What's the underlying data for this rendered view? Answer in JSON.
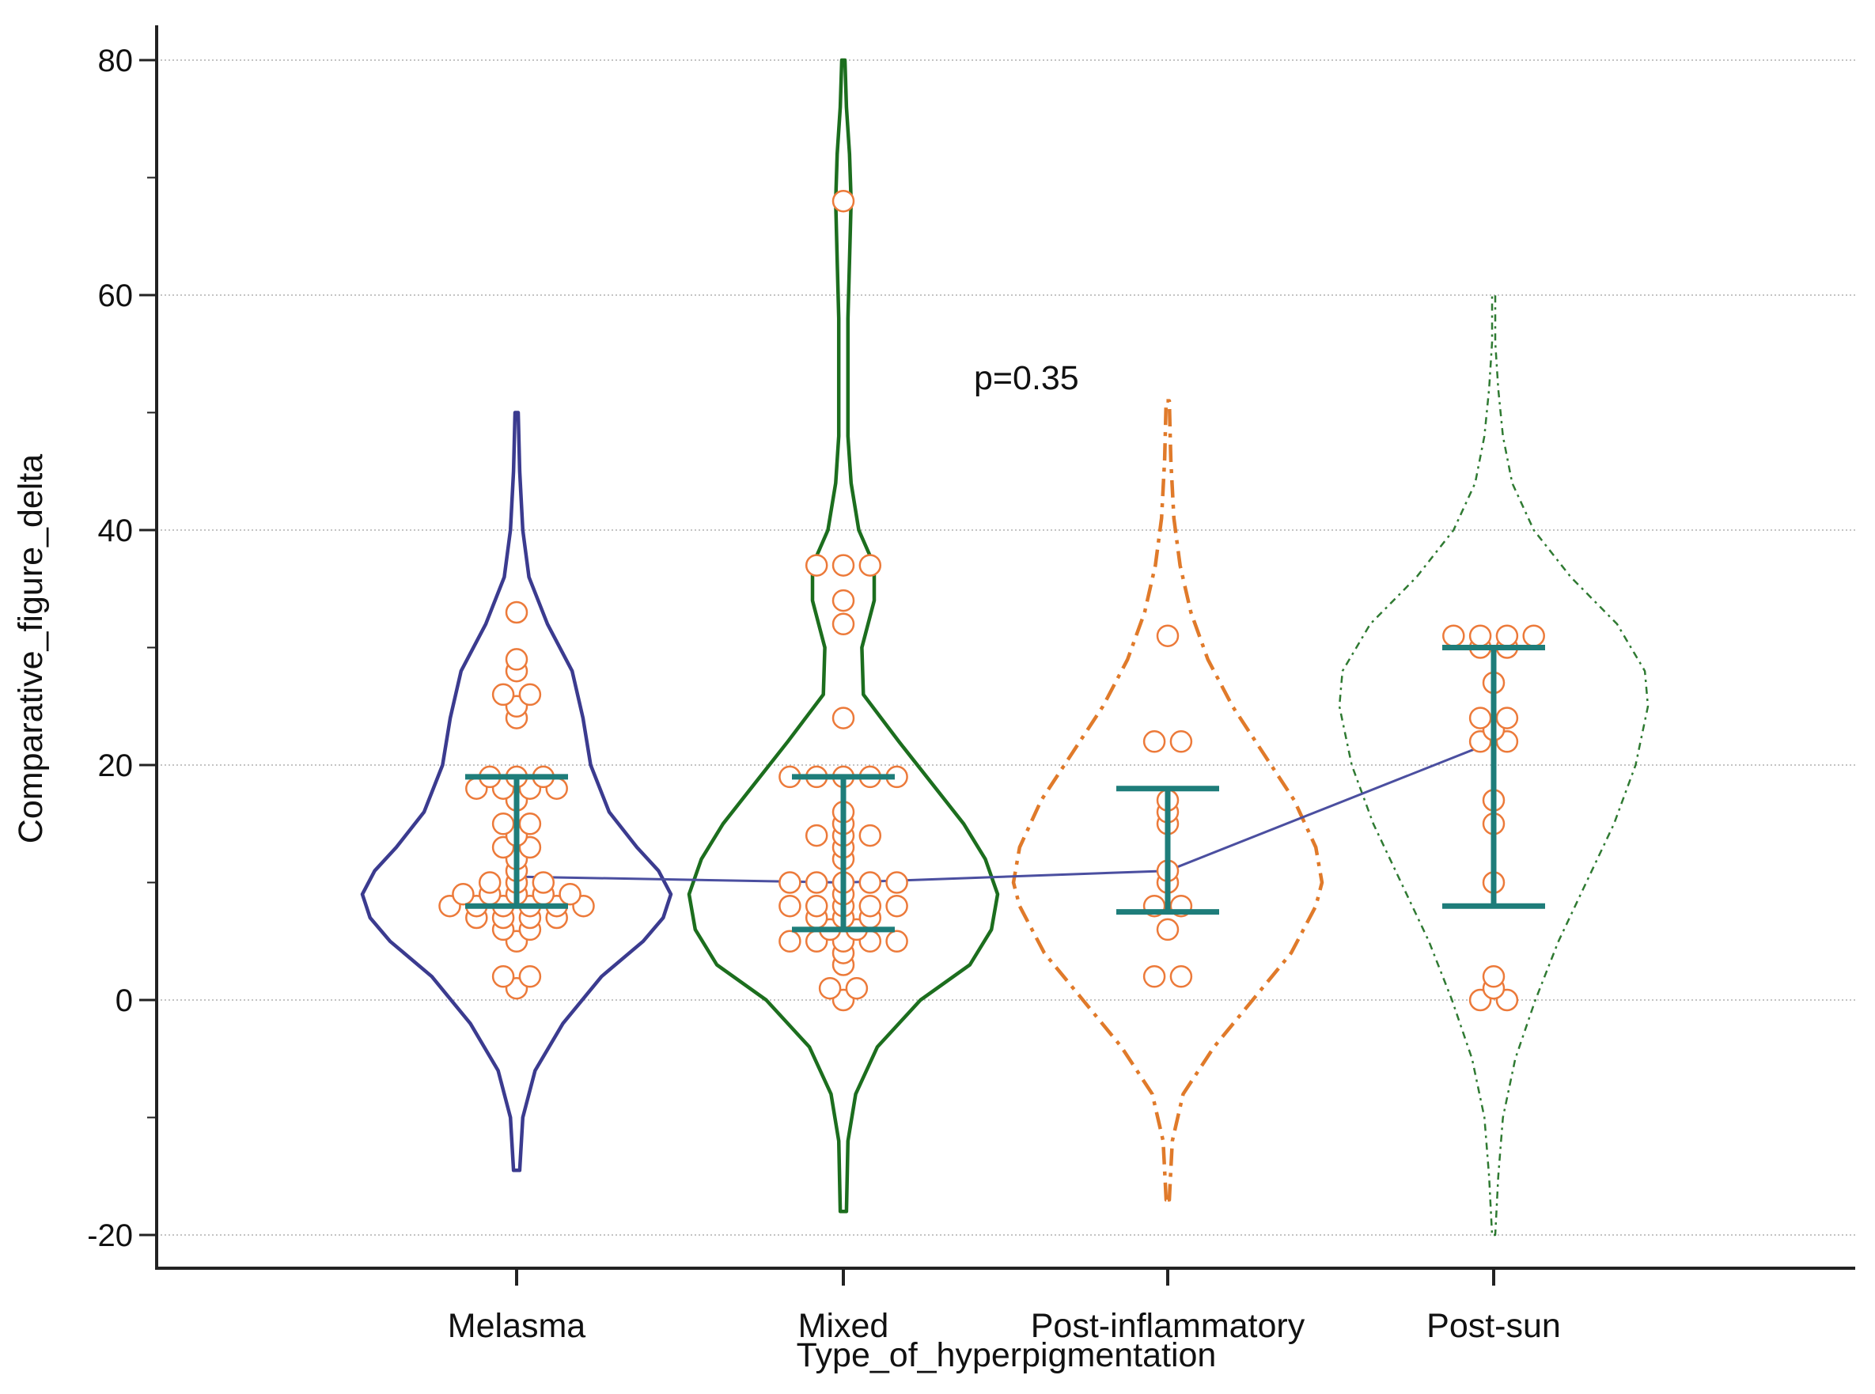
{
  "chart_data": {
    "type": "violin",
    "xlabel": "Type_of_hyperpigmentation",
    "ylabel": "Comparative_figure_delta",
    "ylim": [
      -22,
      84
    ],
    "yticks": [
      -20,
      0,
      20,
      40,
      60,
      80
    ],
    "ytick_labels": [
      "-20",
      "0",
      "20",
      "40",
      "60",
      "80"
    ],
    "grid": "horizontal-dotted",
    "annotation": {
      "text": "p=0.35",
      "x_category": 1.4,
      "y": 52
    },
    "colors": {
      "point": "#ec7a3a",
      "errorbar": "#1e7d7a",
      "trend_line": "#4b4fa0",
      "axis": "#222222",
      "grid": "#b0b0b0"
    },
    "trend_line": {
      "values": [
        10.5,
        10,
        11,
        22
      ]
    },
    "groups": [
      {
        "category": "Melasma",
        "color": "#3b3b8f",
        "line_style": "solid",
        "range": [
          -14.5,
          50
        ],
        "density": [
          [
            -14.5,
            0.02
          ],
          [
            -10,
            0.04
          ],
          [
            -6,
            0.12
          ],
          [
            -2,
            0.3
          ],
          [
            2,
            0.55
          ],
          [
            5,
            0.82
          ],
          [
            7,
            0.95
          ],
          [
            9,
            1.0
          ],
          [
            11,
            0.92
          ],
          [
            13,
            0.78
          ],
          [
            16,
            0.6
          ],
          [
            20,
            0.48
          ],
          [
            24,
            0.43
          ],
          [
            28,
            0.36
          ],
          [
            32,
            0.2
          ],
          [
            36,
            0.08
          ],
          [
            40,
            0.04
          ],
          [
            45,
            0.02
          ],
          [
            50,
            0.01
          ]
        ],
        "points": [
          33,
          29,
          28,
          26,
          26,
          25,
          24,
          19,
          19,
          19,
          18,
          18,
          18,
          18,
          17,
          15,
          15,
          14,
          13,
          13,
          12,
          11,
          10,
          10,
          10,
          9,
          9,
          9,
          9,
          9,
          8,
          8,
          8,
          8,
          8,
          8,
          7,
          7,
          7,
          7,
          6,
          6,
          5,
          2,
          2,
          1
        ],
        "error_bar": {
          "low": 8,
          "high": 19
        },
        "trend_value": 10.5
      },
      {
        "category": "Mixed",
        "color": "#1c6e1e",
        "line_style": "solid",
        "range": [
          -18,
          80
        ],
        "density": [
          [
            -18,
            0.02
          ],
          [
            -12,
            0.03
          ],
          [
            -8,
            0.08
          ],
          [
            -4,
            0.22
          ],
          [
            0,
            0.5
          ],
          [
            3,
            0.82
          ],
          [
            6,
            0.96
          ],
          [
            9,
            1.0
          ],
          [
            12,
            0.92
          ],
          [
            15,
            0.78
          ],
          [
            18,
            0.6
          ],
          [
            22,
            0.36
          ],
          [
            26,
            0.13
          ],
          [
            30,
            0.12
          ],
          [
            34,
            0.2
          ],
          [
            37,
            0.2
          ],
          [
            40,
            0.1
          ],
          [
            44,
            0.05
          ],
          [
            48,
            0.03
          ],
          [
            53,
            0.03
          ],
          [
            58,
            0.03
          ],
          [
            63,
            0.04
          ],
          [
            68,
            0.05
          ],
          [
            72,
            0.04
          ],
          [
            76,
            0.02
          ],
          [
            80,
            0.01
          ]
        ],
        "points": [
          68,
          37,
          37,
          37,
          34,
          32,
          24,
          19,
          19,
          19,
          19,
          19,
          16,
          15,
          14,
          14,
          14,
          13,
          12,
          10,
          10,
          10,
          10,
          10,
          9,
          8,
          8,
          8,
          8,
          8,
          7,
          7,
          7,
          6,
          6,
          5,
          5,
          5,
          5,
          5,
          4,
          3,
          1,
          1,
          0
        ],
        "error_bar": {
          "low": 6,
          "high": 19
        },
        "trend_value": 10
      },
      {
        "category": "Post-inflammatory",
        "color": "#e07a2a",
        "line_style": "dashdot",
        "range": [
          -17,
          51
        ],
        "density": [
          [
            -17,
            0.01
          ],
          [
            -12,
            0.03
          ],
          [
            -8,
            0.1
          ],
          [
            -4,
            0.3
          ],
          [
            0,
            0.55
          ],
          [
            4,
            0.8
          ],
          [
            8,
            0.96
          ],
          [
            10,
            1.0
          ],
          [
            13,
            0.96
          ],
          [
            17,
            0.82
          ],
          [
            21,
            0.62
          ],
          [
            25,
            0.42
          ],
          [
            29,
            0.26
          ],
          [
            33,
            0.15
          ],
          [
            37,
            0.08
          ],
          [
            41,
            0.04
          ],
          [
            46,
            0.02
          ],
          [
            51,
            0.01
          ]
        ],
        "points": [
          31,
          22,
          22,
          17,
          16,
          15,
          11,
          10,
          8,
          8,
          6,
          2,
          2
        ],
        "error_bar": {
          "low": 7.5,
          "high": 18
        },
        "trend_value": 11
      },
      {
        "category": "Post-sun",
        "color": "#2f7a32",
        "line_style": "dashdot-thin",
        "range": [
          -20,
          60
        ],
        "density": [
          [
            -20,
            0.01
          ],
          [
            -15,
            0.03
          ],
          [
            -10,
            0.06
          ],
          [
            -5,
            0.14
          ],
          [
            0,
            0.27
          ],
          [
            5,
            0.42
          ],
          [
            10,
            0.6
          ],
          [
            15,
            0.78
          ],
          [
            20,
            0.92
          ],
          [
            25,
            1.0
          ],
          [
            28,
            0.98
          ],
          [
            32,
            0.8
          ],
          [
            36,
            0.5
          ],
          [
            40,
            0.26
          ],
          [
            44,
            0.12
          ],
          [
            48,
            0.06
          ],
          [
            52,
            0.03
          ],
          [
            56,
            0.01
          ],
          [
            60,
            0.01
          ]
        ],
        "points": [
          31,
          31,
          31,
          31,
          30,
          30,
          27,
          24,
          24,
          23,
          22,
          22,
          17,
          15,
          10,
          2,
          1,
          0,
          0
        ],
        "error_bar": {
          "low": 8,
          "high": 30
        },
        "trend_value": 22
      }
    ]
  }
}
